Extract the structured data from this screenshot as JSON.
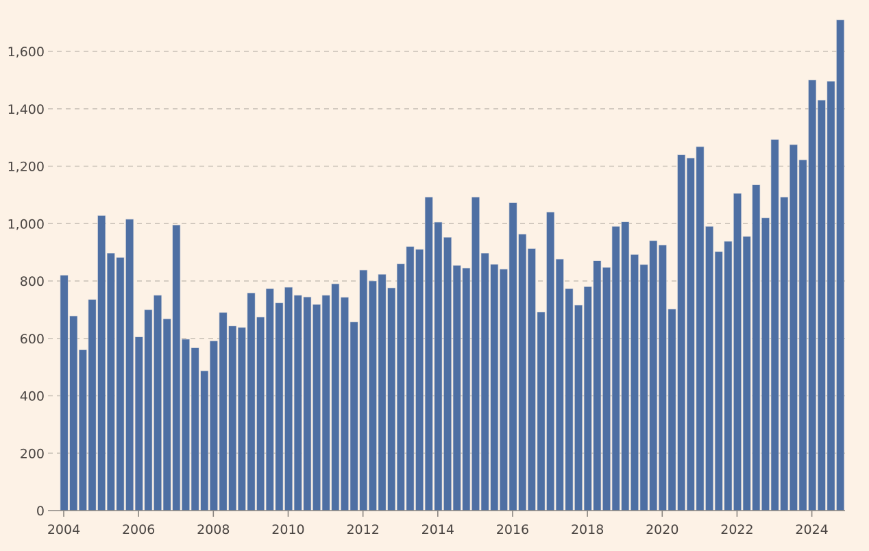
{
  "chart_data": {
    "type": "bar",
    "title": "",
    "xlabel": "",
    "ylabel": "",
    "ylim": [
      0,
      1700
    ],
    "grid": true,
    "frequency": "quarterly",
    "start_year": 2004,
    "bar_color": "#4e6fa3",
    "background": "#fdf2e6",
    "y_ticks": [
      0,
      200,
      400,
      600,
      800,
      1000,
      1200,
      1400,
      1600
    ],
    "y_tick_labels": [
      "0",
      "200",
      "400",
      "600",
      "800",
      "1,000",
      "1,200",
      "1,400",
      "1,600"
    ],
    "x_tick_labels": [
      "2004",
      "2006",
      "2008",
      "2010",
      "2012",
      "2014",
      "2016",
      "2018",
      "2020",
      "2022",
      "2024"
    ],
    "categories": [
      "2004Q1",
      "2004Q2",
      "2004Q3",
      "2004Q4",
      "2005Q1",
      "2005Q2",
      "2005Q3",
      "2005Q4",
      "2006Q1",
      "2006Q2",
      "2006Q3",
      "2006Q4",
      "2007Q1",
      "2007Q2",
      "2007Q3",
      "2007Q4",
      "2008Q1",
      "2008Q2",
      "2008Q3",
      "2008Q4",
      "2009Q1",
      "2009Q2",
      "2009Q3",
      "2009Q4",
      "2010Q1",
      "2010Q2",
      "2010Q3",
      "2010Q4",
      "2011Q1",
      "2011Q2",
      "2011Q3",
      "2011Q4",
      "2012Q1",
      "2012Q2",
      "2012Q3",
      "2012Q4",
      "2013Q1",
      "2013Q2",
      "2013Q3",
      "2013Q4",
      "2014Q1",
      "2014Q2",
      "2014Q3",
      "2014Q4",
      "2015Q1",
      "2015Q2",
      "2015Q3",
      "2015Q4",
      "2016Q1",
      "2016Q2",
      "2016Q3",
      "2016Q4",
      "2017Q1",
      "2017Q2",
      "2017Q3",
      "2017Q4",
      "2018Q1",
      "2018Q2",
      "2018Q3",
      "2018Q4",
      "2019Q1",
      "2019Q2",
      "2019Q3",
      "2019Q4",
      "2020Q1",
      "2020Q2",
      "2020Q3",
      "2020Q4",
      "2021Q1",
      "2021Q2",
      "2021Q3",
      "2021Q4",
      "2022Q1",
      "2022Q2",
      "2022Q3",
      "2022Q4",
      "2023Q1",
      "2023Q2",
      "2023Q3",
      "2023Q4",
      "2024Q1",
      "2024Q2",
      "2024Q3",
      "2024Q4"
    ],
    "values": [
      820,
      678,
      560,
      735,
      1028,
      897,
      882,
      1015,
      605,
      700,
      750,
      668,
      995,
      597,
      567,
      487,
      591,
      690,
      643,
      638,
      758,
      674,
      773,
      724,
      778,
      750,
      744,
      718,
      750,
      790,
      743,
      657,
      838,
      800,
      823,
      776,
      860,
      920,
      910,
      1092,
      1005,
      952,
      854,
      845,
      1092,
      897,
      858,
      841,
      1073,
      963,
      913,
      692,
      1040,
      876,
      773,
      716,
      780,
      870,
      847,
      990,
      1006,
      892,
      857,
      940,
      925,
      702,
      1240,
      1228,
      1268,
      990,
      902,
      938,
      1105,
      955,
      1135,
      1020,
      1293,
      1092,
      1275,
      1222,
      1500,
      1430,
      1496,
      1710
    ]
  }
}
